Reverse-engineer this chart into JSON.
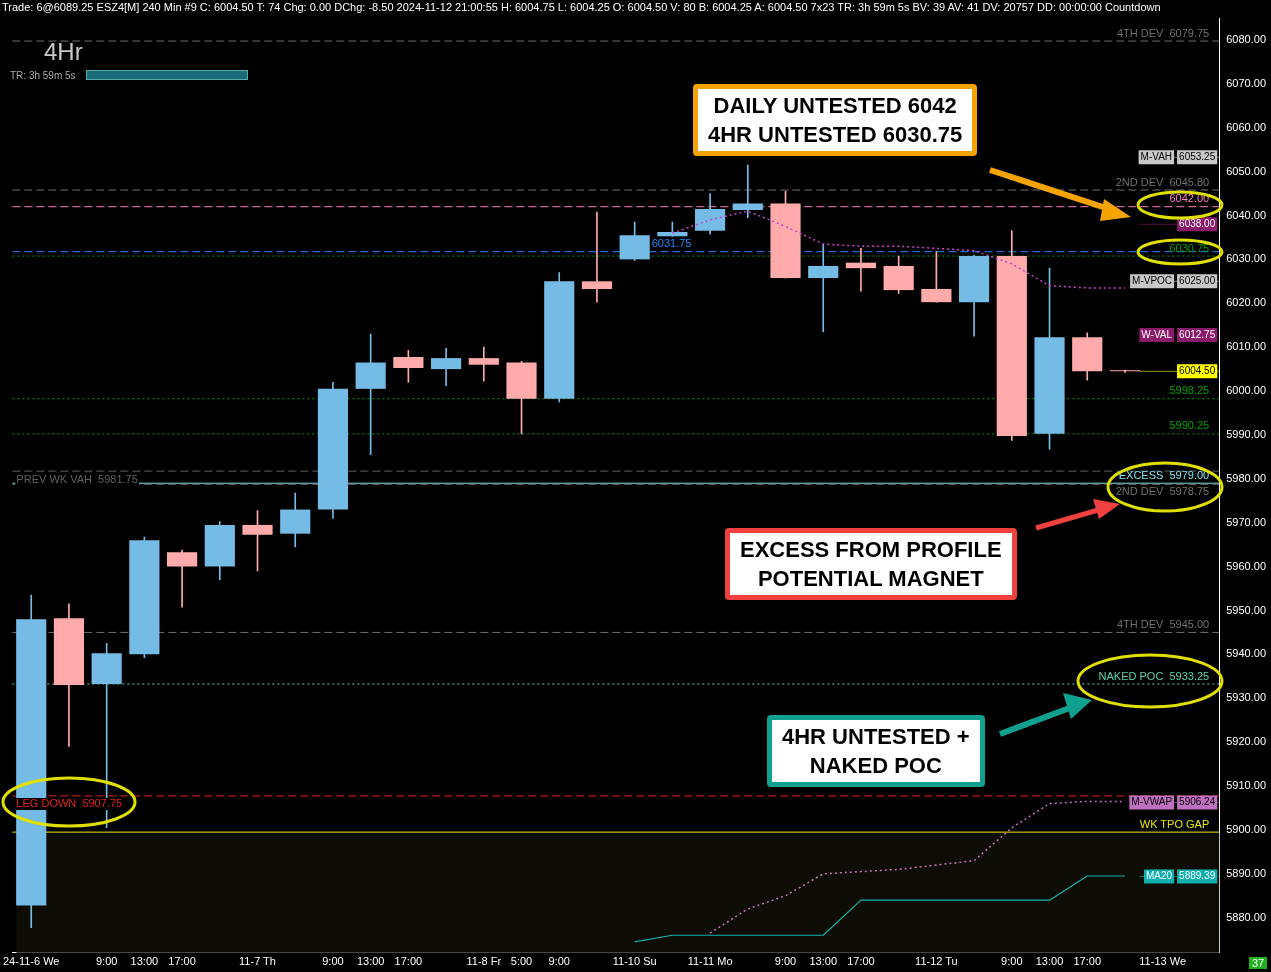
{
  "chart_data": {
    "type": "candlestick",
    "title": "Trade: 6@6089.25 ESZ4[M] 240 Min #9 C: 6004.50 T: 74 Chg: 0.00 DChg: -8.50 2024-11-12 21:00:55 H: 6004.75 L: 6004.25 O: 6004.50 V: 80 B: 6004.25 A: 6004.50 7x23 TR: 3h 59m 5s BV: 39 AV: 41 DV: 20757 DD: 00:00:00 Countdown",
    "subtitle": "4Hr",
    "categories": [
      "24-11-6 We",
      null,
      "9:00",
      "13:00",
      "17:00",
      null,
      "11-7 Th",
      null,
      "9:00",
      "13:00",
      "17:00",
      null,
      "11-8 Fr",
      "5:00",
      "9:00",
      null,
      "11-10 Su",
      null,
      "11-11 Mo",
      null,
      "9:00",
      "13:00",
      "17:00",
      null,
      "11-12 Tu",
      null,
      "9:00",
      "13:00",
      "17:00",
      null,
      "11-13 We"
    ],
    "ohlc": [
      [
        5882.75,
        5953.5,
        5877.75,
        5948
      ],
      [
        5948.25,
        5951.5,
        5919,
        5933
      ],
      [
        5933.25,
        5942.5,
        5900.5,
        5940.25
      ],
      [
        5940,
        5966.75,
        5939.25,
        5966
      ],
      [
        5963.25,
        5963.75,
        5950.75,
        5960
      ],
      [
        5960,
        5970.25,
        5957,
        5969.5
      ],
      [
        5969.5,
        5972.75,
        5959,
        5967.25
      ],
      [
        5967.5,
        5976.75,
        5964.5,
        5973
      ],
      [
        5973,
        6002,
        5971,
        6000.5
      ],
      [
        6000.5,
        6013,
        5985.5,
        6006.5
      ],
      [
        6007.75,
        6009.25,
        6002,
        6005.25
      ],
      [
        6005,
        6009.75,
        6001.25,
        6007.5
      ],
      [
        6007.5,
        6010,
        6002.25,
        6006
      ],
      [
        6006.5,
        6006.75,
        5990.25,
        5998.25
      ],
      [
        5998.25,
        6027,
        5997.5,
        6025
      ],
      [
        6025,
        6040.75,
        6020.25,
        6023.25
      ],
      [
        6030,
        6038.5,
        6029.75,
        6035.5
      ],
      [
        6035.25,
        6038.5,
        6035.25,
        6036.25
      ],
      [
        6036.5,
        6045,
        6035.75,
        6041.5
      ],
      [
        6041.25,
        6051.5,
        6039.5,
        6042.75
      ],
      [
        6042.75,
        6045.5,
        6025.75,
        6025.75
      ],
      [
        6025.75,
        6033.5,
        6013.5,
        6028.5
      ],
      [
        6029.25,
        6032.5,
        6022.75,
        6028
      ],
      [
        6028.5,
        6030.75,
        6022.25,
        6023
      ],
      [
        6023.25,
        6031.75,
        6020.25,
        6020.25
      ],
      [
        6020.25,
        6031,
        6012.5,
        6030.75
      ],
      [
        6030.75,
        6036.5,
        5988.75,
        5989.75
      ],
      [
        5990.25,
        6028,
        5986.75,
        6012.25
      ],
      [
        6012.25,
        6013.25,
        6002.5,
        6004.5
      ],
      [
        6004.5,
        6004.75,
        6004.25,
        6004.5
      ],
      null
    ],
    "colors": [
      "#74bbe6",
      "#ffabab",
      "#74bbe6",
      "#74bbe6",
      "#ffabab",
      "#74bbe6",
      "#ffabab",
      "#74bbe6",
      "#74bbe6",
      "#74bbe6",
      "#ffabab",
      "#74bbe6",
      "#ffabab",
      "#ffabab",
      "#74bbe6",
      "#ffabab",
      "#74bbe6",
      "#74bbe6",
      "#74bbe6",
      "#74bbe6",
      "#ffabab",
      "#74bbe6",
      "#ffabab",
      "#ffabab",
      "#ffabab",
      "#74bbe6",
      "#ffabab",
      "#74bbe6",
      "#ffabab",
      "#ffabab",
      null
    ],
    "series": [
      {
        "type": "line",
        "color": "#d040d0",
        "line_style": "dotted",
        "values": [
          null,
          null,
          null,
          null,
          null,
          null,
          null,
          null,
          null,
          null,
          null,
          null,
          null,
          null,
          null,
          null,
          null,
          6036,
          6039,
          6041,
          6037.5,
          6033.5,
          6033,
          6033,
          6032.5,
          6032,
          6029,
          6024,
          6023.5,
          6023.5,
          null
        ]
      },
      {
        "type": "line",
        "color": "#c070c0",
        "line_style": "dotted",
        "values": [
          null,
          null,
          null,
          null,
          null,
          null,
          null,
          null,
          null,
          null,
          null,
          null,
          null,
          null,
          null,
          null,
          null,
          null,
          5876.5,
          5882,
          5885,
          5890,
          5890.5,
          5891,
          5892,
          5893,
          5900.5,
          5906,
          5906.5,
          5906.5,
          null
        ]
      },
      {
        "type": "line",
        "color": "#10b0b0",
        "line_style": "solid",
        "values": [
          null,
          null,
          null,
          null,
          null,
          null,
          null,
          null,
          null,
          null,
          null,
          null,
          null,
          null,
          null,
          null,
          5874.5,
          5876,
          5876,
          5876,
          5876,
          5876,
          5884,
          5884,
          5884,
          5884,
          5884,
          5884,
          5889.5,
          5889.5,
          null
        ]
      }
    ],
    "ylim": [
      5872,
      6085
    ],
    "yticks": [
      {
        "value": 5880,
        "label": "5880.00"
      },
      {
        "value": 5890,
        "label": "5890.00"
      },
      {
        "value": 5900,
        "label": "5900.00"
      },
      {
        "value": 5910,
        "label": "5910.00"
      },
      {
        "value": 5920,
        "label": "5920.00"
      },
      {
        "value": 5930,
        "label": "5930.00"
      },
      {
        "value": 5940,
        "label": "5940.00"
      },
      {
        "value": 5950,
        "label": "5950.00"
      },
      {
        "value": 5960,
        "label": "5960.00"
      },
      {
        "value": 5970,
        "label": "5970.00"
      },
      {
        "value": 5980,
        "label": "5980.00"
      },
      {
        "value": 5990,
        "label": "5990.00"
      },
      {
        "value": 6000,
        "label": "6000.00"
      },
      {
        "value": 6010,
        "label": "6010.00"
      },
      {
        "value": 6020,
        "label": "6020.00"
      },
      {
        "value": 6030,
        "label": "6030.00"
      },
      {
        "value": 6040,
        "label": "6040.00"
      },
      {
        "value": 6050,
        "label": "6050.00"
      },
      {
        "value": 6060,
        "label": "6060.00"
      },
      {
        "value": 6070,
        "label": "6070.00"
      },
      {
        "value": 6080,
        "label": "6080.00"
      }
    ],
    "ref_lines": [
      {
        "axis": "y",
        "value": 6079.75,
        "label": "4TH DEV  6079.75",
        "color": "#707070",
        "line_style": "dashed"
      },
      {
        "axis": "y",
        "value": 6045.8,
        "label": "2ND DEV  6045.80",
        "color": "#707070",
        "line_style": "dashed"
      },
      {
        "axis": "y",
        "value": 6042,
        "label": "6042.00",
        "color": "#ff80c0",
        "line_style": "dashed"
      },
      {
        "axis": "y",
        "value": 6031.75,
        "label": null,
        "color": "#1e88ff",
        "line_style": "dashed"
      },
      {
        "axis": "y",
        "value": 6030.75,
        "label": "6030.75",
        "color": "#00a000",
        "line_style": "dotted"
      },
      {
        "axis": "y",
        "value": 5998.25,
        "label": "5998.25",
        "color": "#00a000",
        "line_style": "dotted"
      },
      {
        "axis": "y",
        "value": 5990.25,
        "label": "5990.25",
        "color": "#00a000",
        "line_style": "dotted"
      },
      {
        "axis": "y",
        "value": 5981.75,
        "label": null,
        "color": "#606060",
        "line_style": "dashed"
      },
      {
        "axis": "y",
        "value": 5979,
        "label": "EXCESS  5979.00",
        "color": "#80e0f0",
        "line_style": "solid"
      },
      {
        "axis": "y",
        "value": 5978.75,
        "label": "2ND DEV  5978.75",
        "color": "#707070",
        "line_style": "dashed"
      },
      {
        "axis": "y",
        "value": 5945,
        "label": "4TH DEV  5945.00",
        "color": "#707070",
        "line_style": "dashed"
      },
      {
        "axis": "y",
        "value": 5933.25,
        "label": "NAKED POC  5933.25",
        "color": "#60d0b0",
        "line_style": "dotted"
      },
      {
        "axis": "y",
        "value": 5907.75,
        "label": null,
        "color": "#e02020",
        "line_style": "dashed"
      },
      {
        "axis": "y",
        "value": 5899.5,
        "label": "WK TPO GAP",
        "color": "#e8e800",
        "line_style": "solid"
      },
      {
        "axis": "y",
        "value": 6053.25,
        "label": "M-VAH  6053.25",
        "color": "#c8c8c8"
      },
      {
        "axis": "y",
        "value": 6038,
        "label": "6038.00",
        "color": "#8a1a6a"
      },
      {
        "axis": "y",
        "value": 6025,
        "label": "M-VPOC  6025.00",
        "color": "#c8c8c8"
      },
      {
        "axis": "y",
        "value": 6012.75,
        "label": "W-VAL  6012.75",
        "color": "#8a1a6a"
      },
      {
        "axis": "y",
        "value": 6004.5,
        "label": "6004.50",
        "color": "#ffff00"
      },
      {
        "axis": "y",
        "value": 5906.24,
        "label": "M-VWAP  5906.24",
        "color": "#c070c0"
      },
      {
        "axis": "y",
        "value": 5889.39,
        "label": "MA20  5889.39",
        "color": "#10b0b0"
      }
    ],
    "bands": [
      {
        "axis": "y",
        "from": 5872,
        "to": 5899.5,
        "color": "#0d0d05"
      }
    ],
    "annotations": [
      "TR: 3h 59m 5s",
      "DAILY UNTESTED 6042\n4HR UNTESTED 6030.75",
      "EXCESS FROM PROFILE\nPOTENTIAL MAGNET",
      "4HR UNTESTED +\nNAKED POC",
      "37",
      {
        "text": "6031.75",
        "x": "11-10 Su",
        "y": 6031.75
      },
      {
        "text": "PREV WK VAH  5981.75",
        "y": 5981.75
      },
      {
        "text": "LEG DOWN  5907.75",
        "y": 5907.75
      }
    ],
    "grid": false,
    "legend": false
  }
}
